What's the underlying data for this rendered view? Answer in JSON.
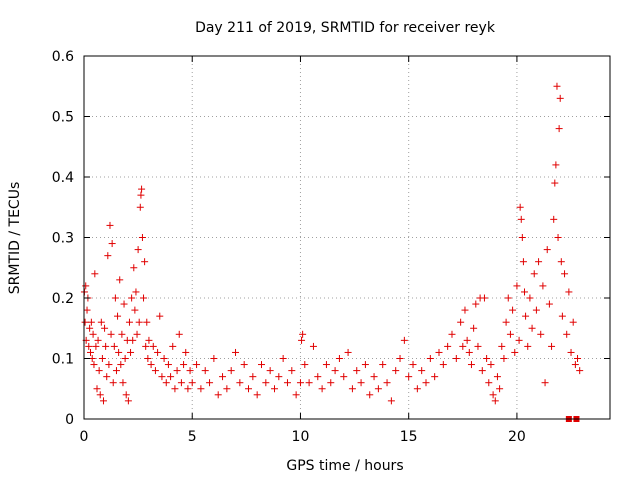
{
  "chart_data": {
    "type": "scatter",
    "title": "Day 211 of 2019, SRMTID for receiver reyk",
    "xlabel": "GPS time / hours",
    "ylabel": "SRMTID / TECUs",
    "xlim": [
      0,
      24.3
    ],
    "ylim": [
      0,
      0.6
    ],
    "xticks": [
      "0",
      "5",
      "10",
      "15",
      "20"
    ],
    "yticks": [
      "0",
      "0.1",
      "0.2",
      "0.3",
      "0.4",
      "0.5",
      "0.6"
    ],
    "grid": true,
    "marker": "+",
    "color": "#e00000",
    "series": [
      {
        "name": "SRMTID",
        "points": [
          [
            0.02,
            0.21
          ],
          [
            0.05,
            0.16
          ],
          [
            0.08,
            0.22
          ],
          [
            0.1,
            0.13
          ],
          [
            0.14,
            0.18
          ],
          [
            0.18,
            0.2
          ],
          [
            0.22,
            0.12
          ],
          [
            0.26,
            0.15
          ],
          [
            0.3,
            0.11
          ],
          [
            0.34,
            0.16
          ],
          [
            0.38,
            0.1
          ],
          [
            0.42,
            0.14
          ],
          [
            0.46,
            0.09
          ],
          [
            0.5,
            0.24
          ],
          [
            0.55,
            0.12
          ],
          [
            0.6,
            0.05
          ],
          [
            0.65,
            0.13
          ],
          [
            0.7,
            0.08
          ],
          [
            0.75,
            0.04
          ],
          [
            0.8,
            0.16
          ],
          [
            0.85,
            0.1
          ],
          [
            0.9,
            0.03
          ],
          [
            0.95,
            0.15
          ],
          [
            1.0,
            0.12
          ],
          [
            1.05,
            0.07
          ],
          [
            1.1,
            0.27
          ],
          [
            1.15,
            0.09
          ],
          [
            1.2,
            0.32
          ],
          [
            1.25,
            0.14
          ],
          [
            1.3,
            0.29
          ],
          [
            1.35,
            0.06
          ],
          [
            1.4,
            0.12
          ],
          [
            1.45,
            0.2
          ],
          [
            1.5,
            0.08
          ],
          [
            1.55,
            0.17
          ],
          [
            1.6,
            0.11
          ],
          [
            1.65,
            0.23
          ],
          [
            1.7,
            0.09
          ],
          [
            1.75,
            0.14
          ],
          [
            1.8,
            0.06
          ],
          [
            1.85,
            0.19
          ],
          [
            1.9,
            0.1
          ],
          [
            1.95,
            0.04
          ],
          [
            2.0,
            0.13
          ],
          [
            2.05,
            0.03
          ],
          [
            2.1,
            0.16
          ],
          [
            2.15,
            0.11
          ],
          [
            2.2,
            0.2
          ],
          [
            2.25,
            0.13
          ],
          [
            2.3,
            0.25
          ],
          [
            2.35,
            0.18
          ],
          [
            2.4,
            0.21
          ],
          [
            2.45,
            0.14
          ],
          [
            2.5,
            0.28
          ],
          [
            2.55,
            0.16
          ],
          [
            2.6,
            0.35
          ],
          [
            2.63,
            0.37
          ],
          [
            2.66,
            0.38
          ],
          [
            2.7,
            0.3
          ],
          [
            2.75,
            0.2
          ],
          [
            2.8,
            0.26
          ],
          [
            2.85,
            0.12
          ],
          [
            2.9,
            0.16
          ],
          [
            2.95,
            0.1
          ],
          [
            3.0,
            0.13
          ],
          [
            3.1,
            0.09
          ],
          [
            3.2,
            0.12
          ],
          [
            3.3,
            0.08
          ],
          [
            3.4,
            0.11
          ],
          [
            3.5,
            0.17
          ],
          [
            3.6,
            0.07
          ],
          [
            3.7,
            0.1
          ],
          [
            3.8,
            0.06
          ],
          [
            3.9,
            0.09
          ],
          [
            4.0,
            0.07
          ],
          [
            4.1,
            0.12
          ],
          [
            4.2,
            0.05
          ],
          [
            4.3,
            0.08
          ],
          [
            4.4,
            0.14
          ],
          [
            4.5,
            0.06
          ],
          [
            4.6,
            0.09
          ],
          [
            4.7,
            0.11
          ],
          [
            4.8,
            0.05
          ],
          [
            4.9,
            0.08
          ],
          [
            5.0,
            0.06
          ],
          [
            5.2,
            0.09
          ],
          [
            5.4,
            0.05
          ],
          [
            5.6,
            0.08
          ],
          [
            5.8,
            0.06
          ],
          [
            6.0,
            0.1
          ],
          [
            6.2,
            0.04
          ],
          [
            6.4,
            0.07
          ],
          [
            6.6,
            0.05
          ],
          [
            6.8,
            0.08
          ],
          [
            7.0,
            0.11
          ],
          [
            7.2,
            0.06
          ],
          [
            7.4,
            0.09
          ],
          [
            7.6,
            0.05
          ],
          [
            7.8,
            0.07
          ],
          [
            8.0,
            0.04
          ],
          [
            8.2,
            0.09
          ],
          [
            8.4,
            0.06
          ],
          [
            8.6,
            0.08
          ],
          [
            8.8,
            0.05
          ],
          [
            9.0,
            0.07
          ],
          [
            9.2,
            0.1
          ],
          [
            9.4,
            0.06
          ],
          [
            9.6,
            0.08
          ],
          [
            9.8,
            0.04
          ],
          [
            10.0,
            0.06
          ],
          [
            10.05,
            0.13
          ],
          [
            10.1,
            0.14
          ],
          [
            10.2,
            0.09
          ],
          [
            10.4,
            0.06
          ],
          [
            10.6,
            0.12
          ],
          [
            10.8,
            0.07
          ],
          [
            11.0,
            0.05
          ],
          [
            11.2,
            0.09
          ],
          [
            11.4,
            0.06
          ],
          [
            11.6,
            0.08
          ],
          [
            11.8,
            0.1
          ],
          [
            12.0,
            0.07
          ],
          [
            12.2,
            0.11
          ],
          [
            12.4,
            0.05
          ],
          [
            12.6,
            0.08
          ],
          [
            12.8,
            0.06
          ],
          [
            13.0,
            0.09
          ],
          [
            13.2,
            0.04
          ],
          [
            13.4,
            0.07
          ],
          [
            13.6,
            0.05
          ],
          [
            13.8,
            0.09
          ],
          [
            14.0,
            0.06
          ],
          [
            14.2,
            0.03
          ],
          [
            14.4,
            0.08
          ],
          [
            14.6,
            0.1
          ],
          [
            14.8,
            0.13
          ],
          [
            15.0,
            0.07
          ],
          [
            15.2,
            0.09
          ],
          [
            15.4,
            0.05
          ],
          [
            15.6,
            0.08
          ],
          [
            15.8,
            0.06
          ],
          [
            16.0,
            0.1
          ],
          [
            16.2,
            0.07
          ],
          [
            16.4,
            0.11
          ],
          [
            16.6,
            0.09
          ],
          [
            16.8,
            0.12
          ],
          [
            17.0,
            0.14
          ],
          [
            17.2,
            0.1
          ],
          [
            17.4,
            0.16
          ],
          [
            17.5,
            0.12
          ],
          [
            17.6,
            0.18
          ],
          [
            17.7,
            0.13
          ],
          [
            17.8,
            0.11
          ],
          [
            17.9,
            0.09
          ],
          [
            18.0,
            0.15
          ],
          [
            18.1,
            0.19
          ],
          [
            18.2,
            0.12
          ],
          [
            18.3,
            0.2
          ],
          [
            18.4,
            0.08
          ],
          [
            18.5,
            0.2
          ],
          [
            18.6,
            0.1
          ],
          [
            18.7,
            0.06
          ],
          [
            18.8,
            0.09
          ],
          [
            18.9,
            0.04
          ],
          [
            19.0,
            0.03
          ],
          [
            19.1,
            0.07
          ],
          [
            19.2,
            0.05
          ],
          [
            19.3,
            0.12
          ],
          [
            19.4,
            0.1
          ],
          [
            19.5,
            0.16
          ],
          [
            19.6,
            0.2
          ],
          [
            19.7,
            0.14
          ],
          [
            19.8,
            0.18
          ],
          [
            19.9,
            0.11
          ],
          [
            20.0,
            0.22
          ],
          [
            20.1,
            0.13
          ],
          [
            20.15,
            0.35
          ],
          [
            20.2,
            0.33
          ],
          [
            20.25,
            0.3
          ],
          [
            20.3,
            0.26
          ],
          [
            20.35,
            0.21
          ],
          [
            20.4,
            0.17
          ],
          [
            20.5,
            0.12
          ],
          [
            20.6,
            0.2
          ],
          [
            20.7,
            0.15
          ],
          [
            20.8,
            0.24
          ],
          [
            20.9,
            0.18
          ],
          [
            21.0,
            0.26
          ],
          [
            21.1,
            0.14
          ],
          [
            21.2,
            0.22
          ],
          [
            21.3,
            0.06
          ],
          [
            21.4,
            0.28
          ],
          [
            21.5,
            0.19
          ],
          [
            21.6,
            0.12
          ],
          [
            21.7,
            0.33
          ],
          [
            21.75,
            0.39
          ],
          [
            21.8,
            0.42
          ],
          [
            21.85,
            0.55
          ],
          [
            21.9,
            0.3
          ],
          [
            21.95,
            0.48
          ],
          [
            22.0,
            0.53
          ],
          [
            22.05,
            0.26
          ],
          [
            22.1,
            0.17
          ],
          [
            22.2,
            0.24
          ],
          [
            22.3,
            0.14
          ],
          [
            22.4,
            0.21
          ],
          [
            22.5,
            0.11
          ],
          [
            22.6,
            0.16
          ],
          [
            22.7,
            0.09
          ],
          [
            22.8,
            0.1
          ],
          [
            22.9,
            0.08
          ]
        ]
      }
    ],
    "zero_markers": [
      22.4,
      22.75
    ]
  }
}
